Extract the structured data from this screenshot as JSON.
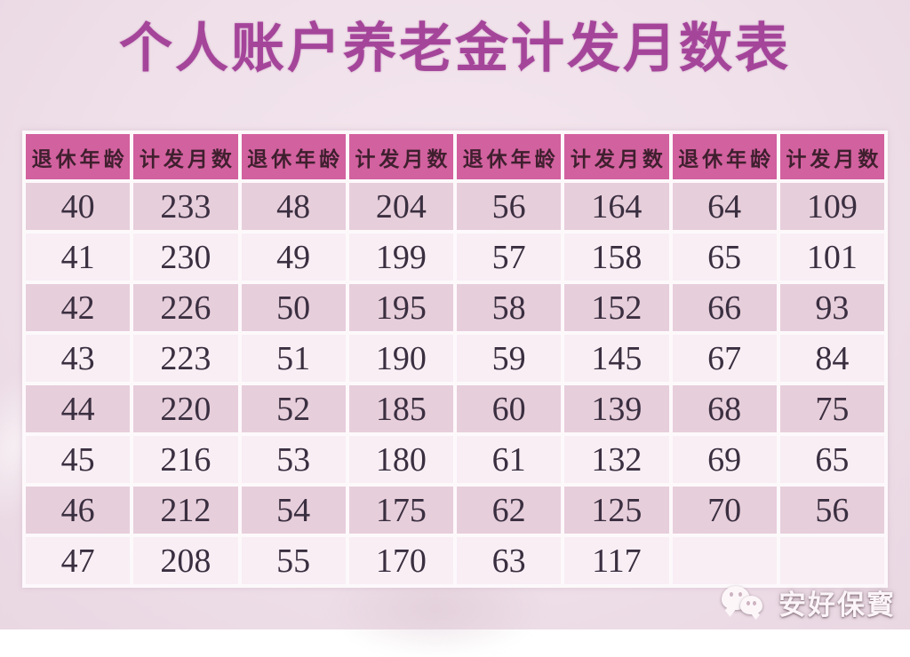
{
  "page": {
    "title": "个人账户养老金计发月数表",
    "watermark": {
      "icon": "wechat-icon",
      "name": "安好保寳"
    },
    "colors": {
      "background": "#efe0e9",
      "title": "#a4459a",
      "header_bg": "#d2619f",
      "header_text": "#3f1f2e",
      "row_dark": "#e7cedb",
      "row_light": "#f8eef4",
      "cell_text": "#3a2f40",
      "grid": "#fdfafc"
    }
  },
  "table": {
    "column_headers": [
      "退休年龄",
      "计发月数",
      "退休年龄",
      "计发月数",
      "退休年龄",
      "计发月数",
      "退休年龄",
      "计发月数"
    ],
    "rows": [
      [
        "40",
        "233",
        "48",
        "204",
        "56",
        "164",
        "64",
        "109"
      ],
      [
        "41",
        "230",
        "49",
        "199",
        "57",
        "158",
        "65",
        "101"
      ],
      [
        "42",
        "226",
        "50",
        "195",
        "58",
        "152",
        "66",
        "93"
      ],
      [
        "43",
        "223",
        "51",
        "190",
        "59",
        "145",
        "67",
        "84"
      ],
      [
        "44",
        "220",
        "52",
        "185",
        "60",
        "139",
        "68",
        "75"
      ],
      [
        "45",
        "216",
        "53",
        "180",
        "61",
        "132",
        "69",
        "65"
      ],
      [
        "46",
        "212",
        "54",
        "175",
        "62",
        "125",
        "70",
        "56"
      ],
      [
        "47",
        "208",
        "55",
        "170",
        "63",
        "117",
        "",
        ""
      ]
    ]
  },
  "chart_data": {
    "type": "table",
    "title": "个人账户养老金计发月数表",
    "columns": [
      "退休年龄",
      "计发月数"
    ],
    "retirement_ages": [
      40,
      41,
      42,
      43,
      44,
      45,
      46,
      47,
      48,
      49,
      50,
      51,
      52,
      53,
      54,
      55,
      56,
      57,
      58,
      59,
      60,
      61,
      62,
      63,
      64,
      65,
      66,
      67,
      68,
      69,
      70
    ],
    "payment_months": [
      233,
      230,
      226,
      223,
      220,
      216,
      212,
      208,
      204,
      199,
      195,
      190,
      185,
      180,
      175,
      170,
      164,
      158,
      152,
      145,
      139,
      132,
      125,
      117,
      109,
      101,
      93,
      84,
      75,
      65,
      56
    ],
    "layout": "4 age/months column pairs, 8 data rows, alternating pink row stripes, magenta header row"
  }
}
